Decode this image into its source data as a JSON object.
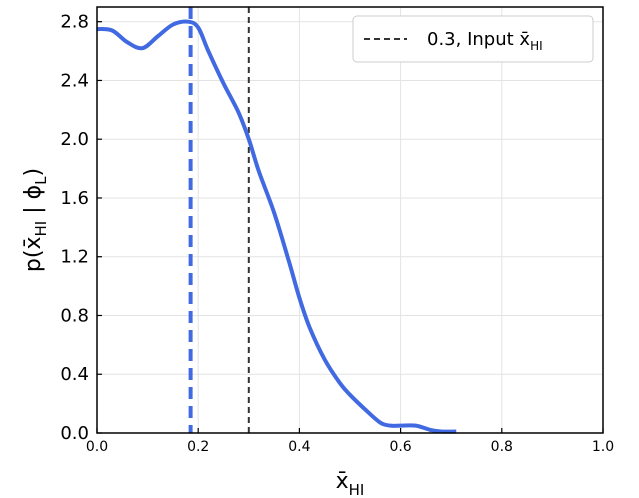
{
  "chart_data": {
    "type": "line",
    "xlabel_base": "x̄",
    "xlabel_sub": "HI",
    "ylabel_parts": {
      "pre": "p(x̄",
      "sub1": "HI",
      "mid": " | ϕ",
      "sub2": "L",
      "post": ")"
    },
    "xlim": [
      0.0,
      1.0
    ],
    "ylim": [
      0.0,
      2.9
    ],
    "xticks": [
      "0.0",
      "0.2",
      "0.4",
      "0.6",
      "0.8",
      "1.0"
    ],
    "yticks": [
      "0.0",
      "0.4",
      "0.8",
      "1.2",
      "1.6",
      "2.0",
      "2.4",
      "2.8"
    ],
    "grid": true,
    "legend_position": "top-right",
    "legend": {
      "label_base": "0.3, Input x̄",
      "label_sub": "HI"
    },
    "series": [
      {
        "color": "#4169E1",
        "x": [
          0.0,
          0.03,
          0.06,
          0.09,
          0.12,
          0.15,
          0.18,
          0.2,
          0.22,
          0.25,
          0.28,
          0.3,
          0.32,
          0.35,
          0.38,
          0.4,
          0.42,
          0.45,
          0.48,
          0.5,
          0.53,
          0.56,
          0.58,
          0.6,
          0.63,
          0.66,
          0.68,
          0.71
        ],
        "y": [
          2.75,
          2.74,
          2.66,
          2.62,
          2.7,
          2.78,
          2.8,
          2.76,
          2.6,
          2.38,
          2.18,
          2.0,
          1.78,
          1.5,
          1.16,
          0.92,
          0.72,
          0.5,
          0.34,
          0.26,
          0.16,
          0.07,
          0.05,
          0.05,
          0.05,
          0.02,
          0.01,
          0.01
        ]
      }
    ],
    "vlines": [
      {
        "x": 0.185,
        "color": "#4169E1",
        "style": "dashed-bold"
      },
      {
        "x": 0.3,
        "color": "#333333",
        "style": "dashed"
      }
    ]
  }
}
